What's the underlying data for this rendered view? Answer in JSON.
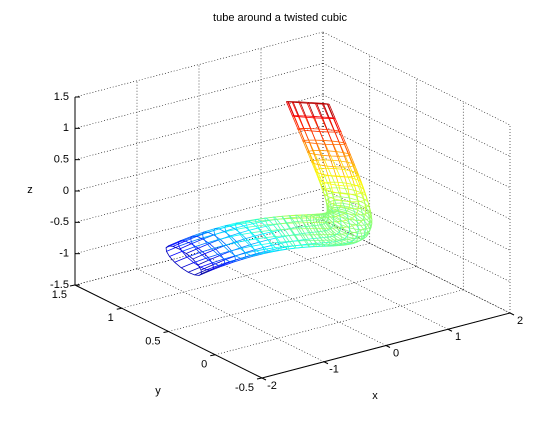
{
  "chart_data": {
    "type": "tube3d",
    "title": "tube around a twisted cubic",
    "xlabel": "x",
    "ylabel": "y",
    "zlabel": "z",
    "x": [
      -1,
      -0.95,
      -0.9,
      -0.85,
      -0.8,
      -0.75,
      -0.7,
      -0.65,
      -0.6,
      -0.55,
      -0.5,
      -0.45,
      -0.4,
      -0.35,
      -0.3,
      -0.25,
      -0.2,
      -0.15,
      -0.1,
      -0.05,
      0,
      0.05,
      0.1,
      0.15,
      0.2,
      0.25,
      0.3,
      0.35,
      0.4,
      0.45,
      0.5,
      0.55,
      0.6,
      0.65,
      0.7,
      0.75,
      0.8,
      0.85,
      0.9,
      0.95,
      1
    ],
    "y": [
      1,
      0.9025,
      0.81,
      0.7225,
      0.64,
      0.5625,
      0.49,
      0.4225,
      0.36,
      0.3025,
      0.25,
      0.2025,
      0.16,
      0.1225,
      0.09,
      0.0625,
      0.04,
      0.0225,
      0.01,
      0.0025,
      0,
      0.0025,
      0.01,
      0.0225,
      0.04,
      0.0625,
      0.09,
      0.1225,
      0.16,
      0.2025,
      0.25,
      0.3025,
      0.36,
      0.4225,
      0.49,
      0.5625,
      0.64,
      0.7225,
      0.81,
      0.9025,
      1
    ],
    "z": [
      -1,
      -0.857375,
      -0.729,
      -0.614125,
      -0.512,
      -0.421875,
      -0.343,
      -0.274625,
      -0.216,
      -0.166375,
      -0.125,
      -0.091125,
      -0.064,
      -0.042875,
      -0.027,
      -0.015625,
      -0.008,
      -0.003375,
      -0.001,
      -0.000125,
      0,
      0.000125,
      0.001,
      0.003375,
      0.008,
      0.015625,
      0.027,
      0.042875,
      0.064,
      0.091125,
      0.125,
      0.166375,
      0.216,
      0.274625,
      0.343,
      0.421875,
      0.512,
      0.614125,
      0.729,
      0.857375,
      1
    ],
    "tube_radius": 0.2,
    "colormap": "jet",
    "xlim": [
      -2,
      2
    ],
    "ylim": [
      -0.5,
      1.5
    ],
    "zlim": [
      -1.5,
      1.5
    ],
    "xticks": [
      -2,
      -1,
      0,
      1,
      2
    ],
    "yticks": [
      -0.5,
      0,
      0.5,
      1,
      1.5
    ],
    "zticks": [
      -1.5,
      -1,
      -0.5,
      0,
      0.5,
      1,
      1.5
    ],
    "grid": true
  }
}
